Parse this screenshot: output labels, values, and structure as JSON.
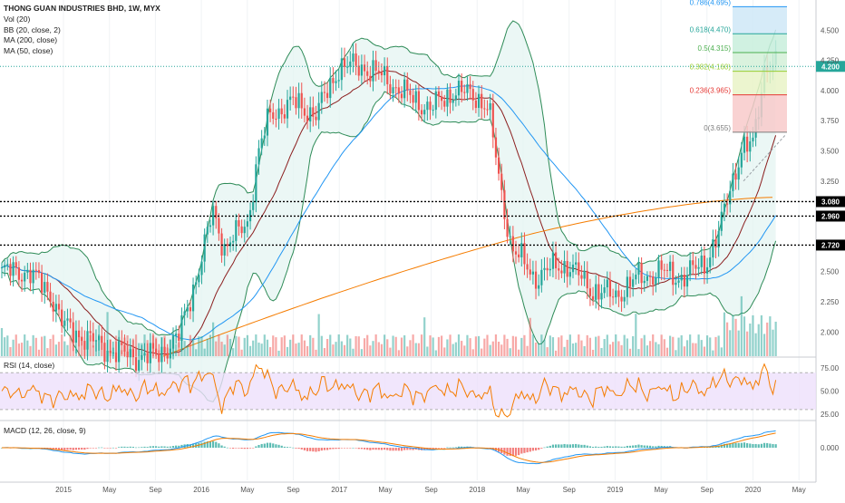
{
  "legend": {
    "title": "THONG GUAN INDUSTRIES BHD, 1W, MYX",
    "vol": "Vol (20)",
    "bb": "BB (20, close, 2)",
    "ma200": "MA (200, close)",
    "ma50": "MA (50, close)"
  },
  "rsi_label": "RSI (14, close)",
  "macd_label": "MACD (12, 26, close, 9)",
  "colors": {
    "up": "#26a69a",
    "down": "#ef5350",
    "bb": "#2e8b57",
    "bb_fill": "#e3f4f1",
    "ma200": "#f57c00",
    "ma50": "#2196f3",
    "ma20": "#8b1e1e",
    "rsi": "#f57c00",
    "rsi_band": "#ede0fb",
    "macd": "#2196f3",
    "signal": "#f57c00",
    "last_price": "#26a69a"
  },
  "chart_data": {
    "type": "candlestick",
    "title": "THONG GUAN INDUSTRIES BHD, 1W, MYX",
    "y_range": [
      1.8,
      4.75
    ],
    "y_ticks": [
      "4.500",
      "4.250",
      "4.000",
      "3.750",
      "3.500",
      "3.250",
      "2.500",
      "2.250",
      "2.000"
    ],
    "x_labels": [
      "2015",
      "May",
      "Sep",
      "2016",
      "May",
      "Sep",
      "2017",
      "May",
      "Sep",
      "2018",
      "May",
      "Sep",
      "2019",
      "May",
      "Sep",
      "2020",
      "May"
    ],
    "price_series": [
      [
        "2014-10",
        2.5
      ],
      [
        "2014-11",
        2.4
      ],
      [
        "2014-12",
        2.3
      ],
      [
        "2015-01",
        2.05
      ],
      [
        "2015-03",
        1.95
      ],
      [
        "2015-05",
        1.85
      ],
      [
        "2015-07",
        1.8
      ],
      [
        "2015-09",
        1.8
      ],
      [
        "2015-11",
        1.95
      ],
      [
        "2016-01",
        2.6
      ],
      [
        "2016-02",
        3.0
      ],
      [
        "2016-03",
        2.7
      ],
      [
        "2016-05",
        2.9
      ],
      [
        "2016-06",
        3.5
      ],
      [
        "2016-07",
        3.8
      ],
      [
        "2016-09",
        3.9
      ],
      [
        "2016-11",
        3.8
      ],
      [
        "2017-01",
        4.2
      ],
      [
        "2017-03",
        4.2
      ],
      [
        "2017-05",
        4.1
      ],
      [
        "2017-07",
        3.95
      ],
      [
        "2017-09",
        3.85
      ],
      [
        "2017-11",
        4.0
      ],
      [
        "2018-01",
        3.95
      ],
      [
        "2018-02",
        3.85
      ],
      [
        "2018-03",
        3.2
      ],
      [
        "2018-04",
        2.7
      ],
      [
        "2018-06",
        2.45
      ],
      [
        "2018-08",
        2.55
      ],
      [
        "2018-09",
        2.55
      ],
      [
        "2018-11",
        2.35
      ],
      [
        "2019-01",
        2.3
      ],
      [
        "2019-03",
        2.45
      ],
      [
        "2019-05",
        2.5
      ],
      [
        "2019-07",
        2.45
      ],
      [
        "2019-09",
        2.6
      ],
      [
        "2019-10",
        2.8
      ],
      [
        "2019-11",
        3.2
      ],
      [
        "2019-12",
        3.5
      ],
      [
        "2020-01",
        3.55
      ],
      [
        "2020-02",
        4.2
      ]
    ],
    "support_levels": [
      {
        "label": "3.080",
        "value": 3.08
      },
      {
        "label": "2.960",
        "value": 2.96
      },
      {
        "label": "2.720",
        "value": 2.72
      }
    ],
    "last_price": {
      "label": "4.200",
      "value": 4.2
    },
    "fibonacci": [
      {
        "label": "0(3.655)",
        "value": 3.655
      },
      {
        "label": "0.236(3.965)",
        "value": 3.965
      },
      {
        "label": "0.382(4.160)",
        "value": 4.16
      },
      {
        "label": "0.5(4.315)",
        "value": 4.315
      },
      {
        "label": "0.618(4.470)",
        "value": 4.47
      },
      {
        "label": "0.786(4.695)",
        "value": 4.695
      }
    ],
    "rsi": {
      "name": "RSI (14, close)",
      "y_ticks": [
        "75.00",
        "50.00",
        "25.00"
      ],
      "band": [
        30,
        70
      ],
      "y_range": [
        20,
        85
      ]
    },
    "macd": {
      "name": "MACD (12, 26, close, 9)",
      "y_ticks": [
        "0.000"
      ]
    }
  }
}
